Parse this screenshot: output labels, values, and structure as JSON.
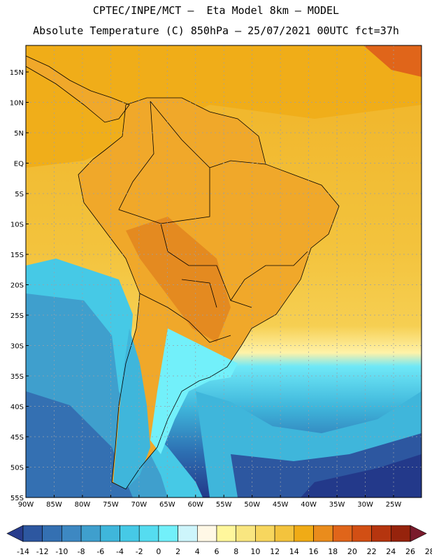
{
  "header": {
    "line1": "CPTEC/INPE/MCT –  Eta Model 8km – MODEL",
    "line2": "Absolute Temperature (C) 850hPa – 25/07/2021 00UTC fct=37h"
  },
  "axes": {
    "lat_labels": [
      "15N",
      "10N",
      "5N",
      "EQ",
      "5S",
      "10S",
      "15S",
      "20S",
      "25S",
      "30S",
      "35S",
      "40S",
      "45S",
      "50S",
      "55S"
    ],
    "lon_labels": [
      "90W",
      "85W",
      "80W",
      "75W",
      "70W",
      "65W",
      "60W",
      "55W",
      "50W",
      "45W",
      "40W",
      "35W",
      "30W",
      "25W"
    ]
  },
  "colorbar": {
    "labels": [
      "-14",
      "-12",
      "-10",
      "-8",
      "-6",
      "-4",
      "-2",
      "0",
      "2",
      "4",
      "6",
      "8",
      "10",
      "12",
      "14",
      "16",
      "18",
      "20",
      "22",
      "24",
      "26",
      "28"
    ],
    "colors": [
      "#283c8c",
      "#2d57a0",
      "#3470b2",
      "#3d88c2",
      "#3f9fcd",
      "#3fb6db",
      "#46c9e6",
      "#55dcf0",
      "#72f0fa",
      "#cdf5fb",
      "#fff8e6",
      "#fff79c",
      "#f9e680",
      "#f7d65e",
      "#f3c33d",
      "#f0ab16",
      "#ea8c1c",
      "#e0651a",
      "#d24f14",
      "#b5350f",
      "#96230c",
      "#7a1a2c"
    ]
  }
}
